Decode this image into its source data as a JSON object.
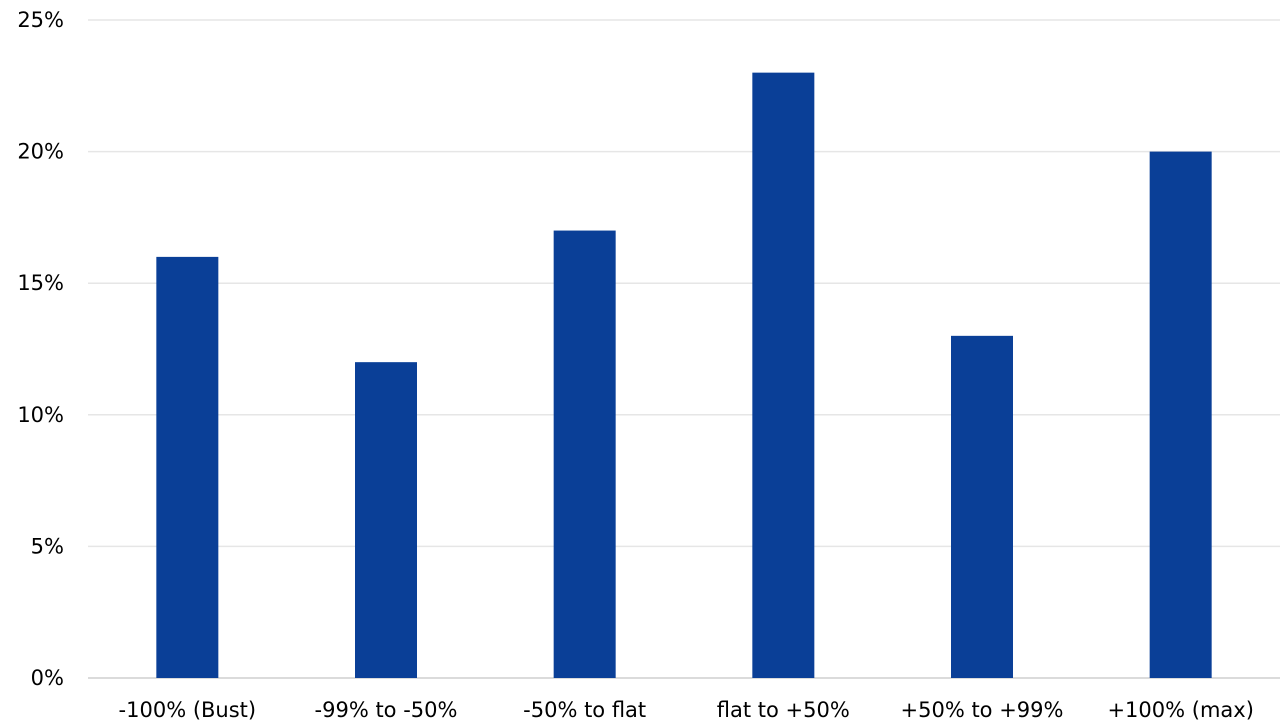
{
  "chart_data": {
    "type": "bar",
    "title": "",
    "xlabel": "",
    "ylabel": "",
    "categories": [
      "-100% (Bust)",
      "-99% to -50%",
      "-50% to flat",
      "flat to +50%",
      "+50% to +99%",
      "+100% (max)"
    ],
    "values": [
      16,
      12,
      17,
      23,
      13,
      20
    ],
    "ylim": [
      0,
      25
    ],
    "y_ticks": [
      0,
      5,
      10,
      15,
      20,
      25
    ],
    "y_tick_labels": [
      "0%",
      "5%",
      "10%",
      "15%",
      "20%",
      "25%"
    ],
    "grid": true,
    "legend": "none",
    "bar_color": "#0a3f97"
  }
}
